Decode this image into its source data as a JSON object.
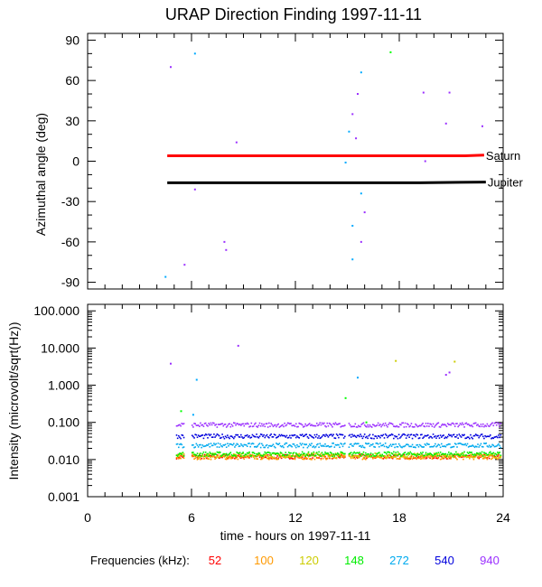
{
  "chart_data": {
    "type": "scatter",
    "title": "URAP Direction Finding  1997-11-11",
    "xlabel": "time - hours on 1997-11-11",
    "xlim": [
      0,
      24
    ],
    "x_ticks": [
      0,
      6,
      12,
      18,
      24
    ],
    "x_tick_labels": [
      "0",
      "6",
      "12",
      "18",
      "24"
    ],
    "panels": [
      {
        "name": "azimuth",
        "ylabel": "Azimuthal angle (deg)",
        "ylim": [
          -95,
          95
        ],
        "y_ticks": [
          90,
          60,
          30,
          0,
          -30,
          -60,
          -90
        ],
        "y_tick_labels": [
          "90",
          "60",
          "30",
          "0",
          "-30",
          "-60",
          "-90"
        ],
        "lines": [
          {
            "name": "Saturn",
            "color": "#ff0000",
            "x": [
              4.6,
              21.8,
              22.9
            ],
            "y": [
              4,
              4,
              4.5
            ]
          },
          {
            "name": "Jupiter",
            "color": "#000000",
            "x": [
              4.6,
              19.2,
              23.0
            ],
            "y": [
              -16,
              -16,
              -15.5
            ]
          }
        ],
        "points": [
          {
            "x": 4.8,
            "y": 70,
            "color": "#9b30ff"
          },
          {
            "x": 6.2,
            "y": 80,
            "color": "#00aaff"
          },
          {
            "x": 8.6,
            "y": 14,
            "color": "#9b30ff"
          },
          {
            "x": 6.2,
            "y": -21,
            "color": "#9b30ff"
          },
          {
            "x": 7.9,
            "y": -60,
            "color": "#9b30ff"
          },
          {
            "x": 8.0,
            "y": -66,
            "color": "#9b30ff"
          },
          {
            "x": 5.6,
            "y": -77,
            "color": "#9b30ff"
          },
          {
            "x": 4.5,
            "y": -86,
            "color": "#00aaff"
          },
          {
            "x": 15.1,
            "y": 22,
            "color": "#00aaff"
          },
          {
            "x": 15.3,
            "y": 35,
            "color": "#9b30ff"
          },
          {
            "x": 15.5,
            "y": 17,
            "color": "#9b30ff"
          },
          {
            "x": 15.6,
            "y": 50,
            "color": "#9b30ff"
          },
          {
            "x": 15.8,
            "y": 66,
            "color": "#00aaff"
          },
          {
            "x": 14.9,
            "y": -1,
            "color": "#00aaff"
          },
          {
            "x": 15.3,
            "y": -48,
            "color": "#00aaff"
          },
          {
            "x": 15.3,
            "y": -73,
            "color": "#00aaff"
          },
          {
            "x": 15.8,
            "y": -60,
            "color": "#9b30ff"
          },
          {
            "x": 16.0,
            "y": -38,
            "color": "#9b30ff"
          },
          {
            "x": 15.8,
            "y": -24,
            "color": "#00aaff"
          },
          {
            "x": 17.5,
            "y": 81,
            "color": "#00ff00"
          },
          {
            "x": 19.5,
            "y": 0,
            "color": "#9b30ff"
          },
          {
            "x": 19.4,
            "y": 51,
            "color": "#9b30ff"
          },
          {
            "x": 20.9,
            "y": 51,
            "color": "#9b30ff"
          },
          {
            "x": 20.7,
            "y": 28,
            "color": "#9b30ff"
          },
          {
            "x": 22.8,
            "y": 26,
            "color": "#9b30ff"
          }
        ]
      },
      {
        "name": "intensity",
        "ylabel": "Intensity (microvolt/sqrt(Hz))",
        "scale": "log",
        "ylim": [
          0.001,
          150
        ],
        "y_ticks": [
          100,
          10,
          1,
          0.1,
          0.01,
          0.001
        ],
        "y_tick_labels": [
          "100.000",
          "10.000",
          "1.000",
          "0.100",
          "0.010",
          "0.001"
        ],
        "series": [
          {
            "name": "52",
            "color": "#ff0000",
            "level": 0.012
          },
          {
            "name": "100",
            "color": "#ff9900",
            "level": 0.0115
          },
          {
            "name": "120",
            "color": "#cccc00",
            "level": 0.013
          },
          {
            "name": "148",
            "color": "#00ee00",
            "level": 0.014
          },
          {
            "name": "272",
            "color": "#00aaee",
            "level": 0.024
          },
          {
            "name": "540",
            "color": "#0000dd",
            "level": 0.042
          },
          {
            "name": "940",
            "color": "#9b30ff",
            "level": 0.085
          }
        ],
        "data_gaps": [
          [
            4.6,
            5.1
          ],
          [
            5.6,
            6.0
          ],
          [
            14.9,
            15.1
          ]
        ],
        "points": [
          {
            "x": 4.8,
            "y": 3.8,
            "color": "#9b30ff"
          },
          {
            "x": 6.3,
            "y": 1.4,
            "color": "#00aaff"
          },
          {
            "x": 8.7,
            "y": 11.5,
            "color": "#9b30ff"
          },
          {
            "x": 5.4,
            "y": 0.2,
            "color": "#00ff00"
          },
          {
            "x": 6.1,
            "y": 0.16,
            "color": "#00aaff"
          },
          {
            "x": 14.9,
            "y": 0.45,
            "color": "#00ff00"
          },
          {
            "x": 15.6,
            "y": 1.6,
            "color": "#00aaff"
          },
          {
            "x": 17.8,
            "y": 4.5,
            "color": "#cccc00"
          },
          {
            "x": 20.7,
            "y": 1.9,
            "color": "#9b30ff"
          },
          {
            "x": 20.9,
            "y": 2.2,
            "color": "#9b30ff"
          },
          {
            "x": 21.2,
            "y": 4.3,
            "color": "#cccc00"
          },
          {
            "x": 16.1,
            "y": 0.1,
            "color": "#00ff00"
          }
        ]
      }
    ],
    "legend": {
      "title": "Frequencies (kHz):",
      "placement": "bottom",
      "entries": [
        {
          "label": "52",
          "color": "#ff0000"
        },
        {
          "label": "100",
          "color": "#ff9900"
        },
        {
          "label": "120",
          "color": "#cccc00"
        },
        {
          "label": "148",
          "color": "#00ee00"
        },
        {
          "label": "272",
          "color": "#00aaee"
        },
        {
          "label": "540",
          "color": "#0000dd"
        },
        {
          "label": "940",
          "color": "#9b30ff"
        }
      ]
    }
  }
}
